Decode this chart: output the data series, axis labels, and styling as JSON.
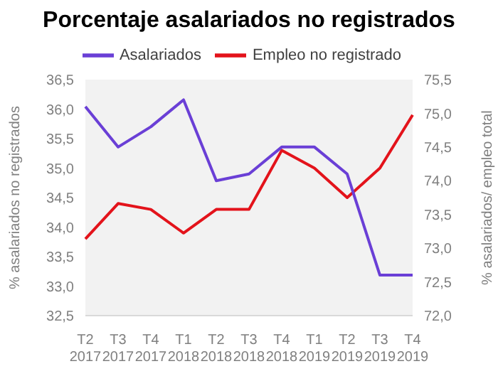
{
  "chart_data": {
    "type": "line",
    "title": "Porcentaje asalariados no registrados",
    "ylabel": "% asalariados no registrados",
    "y2label": "% asalariados/ empleo total",
    "categories": [
      "T2 2017",
      "T3 2017",
      "T4 2017",
      "T1 2018",
      "T2 2018",
      "T3 2018",
      "T4 2018",
      "T1 2019",
      "T2 2019",
      "T3 2019",
      "T4 2019"
    ],
    "series": [
      {
        "name": "Empleo no registrado",
        "color": "#e3131b",
        "values": [
          33.8,
          34.4,
          34.3,
          33.9,
          34.3,
          34.3,
          35.3,
          35.0,
          34.5,
          35.0,
          35.9
        ]
      },
      {
        "name": "Asalariados",
        "color": "#6a3fd6",
        "axis": "y2",
        "values": [
          75.1,
          74.5,
          74.8,
          75.2,
          74.0,
          74.1,
          74.5,
          74.5,
          74.1,
          72.6,
          72.6
        ]
      }
    ],
    "ylim": [
      32.5,
      36.5
    ],
    "yticks": [
      {
        "value": 32.5,
        "label": "32,5"
      },
      {
        "value": 33,
        "label": "33,0"
      },
      {
        "value": 33.5,
        "label": "33,5"
      },
      {
        "value": 34,
        "label": "34,0"
      },
      {
        "value": 34.5,
        "label": "34,5"
      },
      {
        "value": 35,
        "label": "35,0"
      },
      {
        "value": 35.5,
        "label": "35,5"
      },
      {
        "value": 36,
        "label": "36,0"
      },
      {
        "value": 36.5,
        "label": "36,5"
      }
    ],
    "y2lim": [
      72,
      75.5
    ],
    "y2ticks": [
      {
        "value": 72,
        "label": "72,0"
      },
      {
        "value": 72.5,
        "label": "72,5"
      },
      {
        "value": 73,
        "label": "73,0"
      },
      {
        "value": 73.5,
        "label": "73,5"
      },
      {
        "value": 74,
        "label": "74,0"
      },
      {
        "value": 74.5,
        "label": "74,5"
      },
      {
        "value": 75,
        "label": "75,0"
      },
      {
        "value": 75.5,
        "label": "75,5"
      }
    ],
    "grid": false,
    "legend": "top",
    "marker": "none",
    "line_style": "solid"
  }
}
